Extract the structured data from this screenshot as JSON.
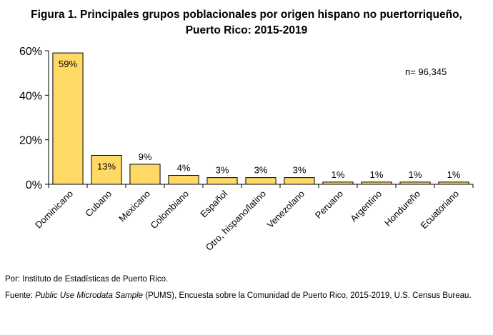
{
  "chart_data": {
    "type": "bar",
    "title_line1": "Figura 1. Principales grupos poblacionales por origen hispano no puertorriqueño,",
    "title_line2": "Puerto Rico: 2015-2019",
    "categories": [
      "Dominicano",
      "Cubano",
      "Mexicano",
      "Colombiano",
      "Español",
      "Otro, hispano/latino",
      "Venezolano",
      "Peruano",
      "Argentino",
      "Hondureño",
      "Ecuatoriano"
    ],
    "values": [
      59,
      13,
      9,
      4,
      3,
      3,
      3,
      1,
      1,
      1,
      1
    ],
    "data_labels": [
      "59%",
      "13%",
      "9%",
      "4%",
      "3%",
      "3%",
      "3%",
      "1%",
      "1%",
      "1%",
      "1%"
    ],
    "ylim": [
      0,
      60
    ],
    "yticks": [
      0,
      20,
      40,
      60
    ],
    "ytick_labels": [
      "0%",
      "20%",
      "40%",
      "60%"
    ],
    "annotation": "n= 96,345",
    "grid": false,
    "legend": "none",
    "bar_color": "#FFD966",
    "bar_edge_color": "#000000"
  },
  "footer": {
    "by": "Por: Instituto de Estadísticas de Puerto Rico.",
    "source_prefix": "Fuente: ",
    "source_italic": "Public Use Microdata Sample",
    "source_rest": " (PUMS), Encuesta sobre la Comunidad de Puerto Rico, 2015-2019, U.S. Census Bureau."
  }
}
